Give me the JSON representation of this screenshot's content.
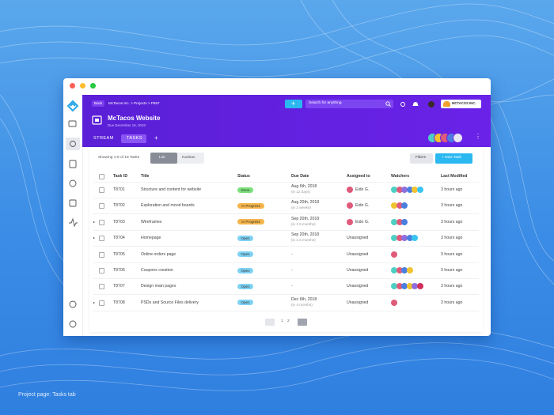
{
  "browser": {
    "back": "Back",
    "breadcrumb": "McTacos Inc. > Projects > P867",
    "search_placeholder": "Search for anything",
    "company": "MCTACOS INC."
  },
  "project": {
    "title": "McTacos Website",
    "due": "Due December 16, 2018",
    "tabs": [
      "STREAM",
      "TASKS",
      "+"
    ],
    "active_tab": 1,
    "members": [
      "#4dd0c4",
      "#f2c230",
      "#e05a7a",
      "#4a7fe0",
      "#e8e8f4"
    ]
  },
  "toolbar": {
    "showing": "Showing 1-8 of 19 Tasks",
    "views": [
      "List",
      "Kanban"
    ],
    "active_view": 0,
    "filters": "Filters",
    "new_task": "+ New Task"
  },
  "table": {
    "headers": [
      "Task ID",
      "Title",
      "Status",
      "Due Date",
      "Assigned to",
      "Watchers",
      "Last Modified"
    ],
    "rows": [
      {
        "expand": false,
        "id": "T8701",
        "title": "Structure and content for website",
        "status": "Done",
        "status_color": "#7be07b",
        "due": "Aug 6th, 2018",
        "due_note": "(in 12 days)",
        "assigned": "Eido G.",
        "assigned_color": "#e05a7a",
        "watchers": [
          "#4dd0c4",
          "#e05a7a",
          "#8e6fe0",
          "#4a7fe0",
          "#f2c230",
          "#38c5f0"
        ],
        "modified": "3 hours ago"
      },
      {
        "expand": false,
        "id": "T8702",
        "title": "Exploration and mood boards",
        "status": "In Progress",
        "status_color": "#f5b54a",
        "due": "Aug 20th, 2018",
        "due_note": "(in 2 weeks)",
        "assigned": "Eido G.",
        "assigned_color": "#e05a7a",
        "watchers": [
          "#f2c230",
          "#e05a7a",
          "#4a7fe0"
        ],
        "modified": "3 hours ago"
      },
      {
        "expand": true,
        "id": "T8703",
        "title": "Wireframes",
        "status": "In Progress",
        "status_color": "#f5b54a",
        "due": "Sep 20th, 2018",
        "due_note": "(in 1.5 months)",
        "assigned": "Eido G.",
        "assigned_color": "#e05a7a",
        "watchers": [
          "#4dd0c4",
          "#e05a7a",
          "#4a7fe0"
        ],
        "modified": "3 hours ago"
      },
      {
        "expand": true,
        "id": "T8704",
        "title": "Homepage",
        "status": "Open",
        "status_color": "#7fd3f5",
        "due": "Sep 20th, 2018",
        "due_note": "(in 1.5 months)",
        "assigned": "Unassigned",
        "assigned_color": null,
        "watchers": [
          "#4dd0c4",
          "#e05a7a",
          "#8e6fe0",
          "#4a7fe0",
          "#38c5f0"
        ],
        "modified": "3 hours ago"
      },
      {
        "expand": false,
        "id": "T8705",
        "title": "Online orders page",
        "status": "Open",
        "status_color": "#7fd3f5",
        "due": "-",
        "due_note": null,
        "assigned": "Unassigned",
        "assigned_color": null,
        "watchers": [
          "#e05a7a"
        ],
        "modified": "3 hours ago"
      },
      {
        "expand": false,
        "id": "T8706",
        "title": "Coupons creation",
        "status": "Open",
        "status_color": "#7fd3f5",
        "due": "-",
        "due_note": null,
        "assigned": "Unassigned",
        "assigned_color": null,
        "watchers": [
          "#4dd0c4",
          "#e05a7a",
          "#4a7fe0",
          "#f2c230"
        ],
        "modified": "3 hours ago"
      },
      {
        "expand": false,
        "id": "T8707",
        "title": "Design main pages",
        "status": "Open",
        "status_color": "#7fd3f5",
        "due": "-",
        "due_note": null,
        "assigned": "Unassigned",
        "assigned_color": null,
        "watchers": [
          "#4dd0c4",
          "#e05a7a",
          "#4a7fe0",
          "#f2c230",
          "#8e6fe0",
          "#d0305a"
        ],
        "modified": "3 hours ago"
      },
      {
        "expand": true,
        "id": "T8708",
        "title": "PSDs and Source Files delivery",
        "status": "Open",
        "status_color": "#7fd3f5",
        "due": "Dec 6th, 2018",
        "due_note": "(in 4 months)",
        "assigned": "Unassigned",
        "assigned_color": null,
        "watchers": [
          "#e05a7a"
        ],
        "modified": "3 hours ago"
      }
    ]
  },
  "pagination": [
    "1",
    "2"
  ],
  "caption": "Project page: Tasks tab"
}
